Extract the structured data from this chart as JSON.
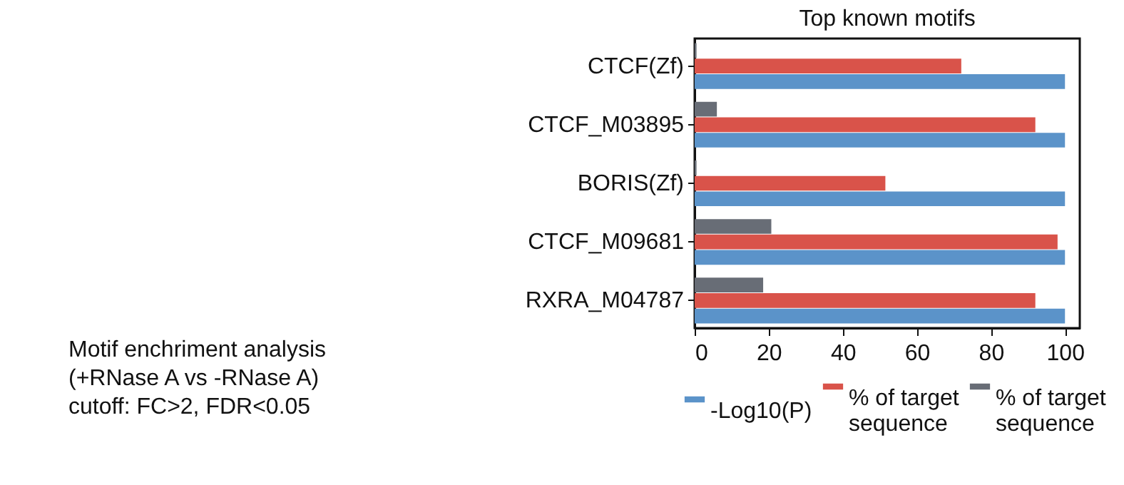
{
  "chart_data": {
    "type": "bar",
    "orientation": "horizontal",
    "title": "Top known motifs",
    "categories": [
      "CTCF(Zf)",
      "CTCF_M03895",
      "BORIS(Zf)",
      "CTCF_M09681",
      "RXRA_M04787"
    ],
    "series": [
      {
        "name": "-Log10(P)",
        "color": "#5b93c9",
        "values": [
          100,
          100,
          100,
          100,
          100
        ]
      },
      {
        "name": "% of target sequence",
        "color": "#d9534a",
        "values": [
          72,
          92,
          51.5,
          98,
          92
        ]
      },
      {
        "name": "% of target sequence",
        "color": "#686d76",
        "values": [
          0.5,
          6,
          0.5,
          20.7,
          18.5
        ]
      }
    ],
    "xlim": [
      0,
      104
    ],
    "xticks": [
      0,
      20,
      40,
      60,
      80,
      100
    ],
    "grid": false,
    "legend": "bottom",
    "annotations": [
      "Motif enchriment analysis",
      "(+RNase A vs -RNase A)",
      "cutoff: FC>2, FDR<0.05"
    ]
  }
}
